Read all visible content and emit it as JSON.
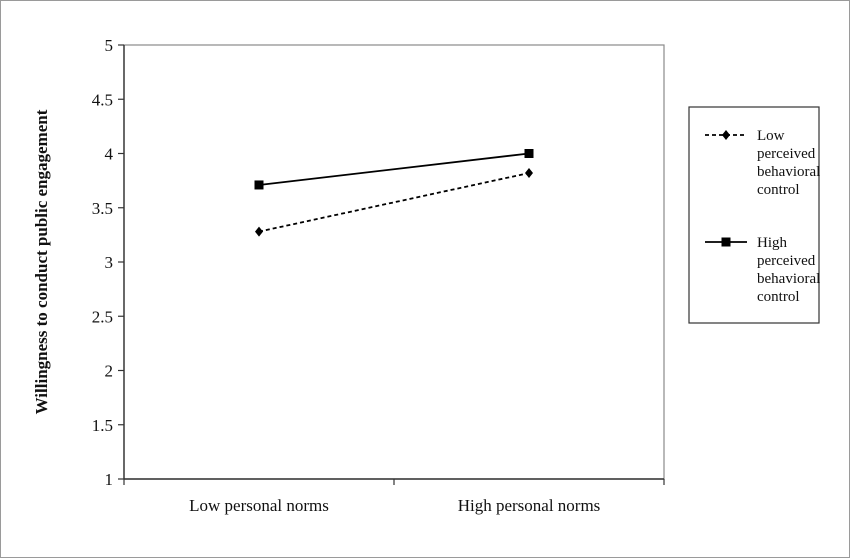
{
  "chart_data": {
    "type": "line",
    "title": "",
    "xlabel": "",
    "ylabel": "Willingness to conduct public engagement",
    "categories": [
      "Low personal norms",
      "High personal norms"
    ],
    "ylim": [
      1,
      5
    ],
    "yticks": [
      "1",
      "1.5",
      "2",
      "2.5",
      "3",
      "3.5",
      "4",
      "4.5",
      "5"
    ],
    "grid": false,
    "legend_position": "right",
    "series": [
      {
        "name": "Low perceived behavioral control",
        "legend_lines": [
          "Low",
          "perceived",
          "behavioral",
          "control"
        ],
        "values": [
          3.28,
          3.82
        ],
        "line_style": "dashed",
        "marker": "diamond",
        "color": "#000000"
      },
      {
        "name": "High perceived behavioral control",
        "legend_lines": [
          "High",
          "perceived",
          "behavioral",
          "control"
        ],
        "values": [
          3.71,
          4.0
        ],
        "line_style": "solid",
        "marker": "square",
        "color": "#000000"
      }
    ]
  }
}
